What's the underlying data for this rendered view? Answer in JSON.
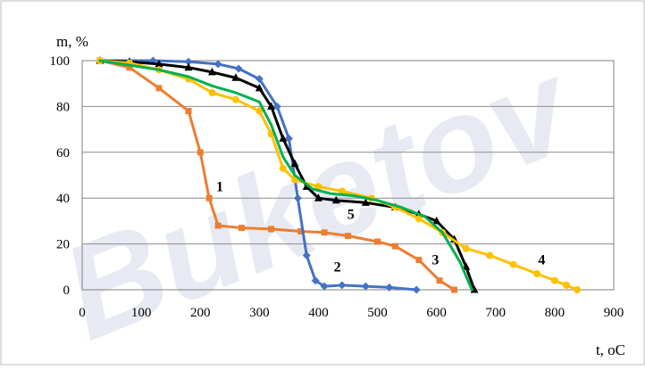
{
  "chart_data": {
    "type": "line",
    "title": "",
    "xlabel": "t, oC",
    "ylabel": "m, %",
    "xlim": [
      0,
      900
    ],
    "ylim": [
      0,
      100
    ],
    "x_ticks": [
      "0",
      "100",
      "200",
      "300",
      "400",
      "500",
      "600",
      "700",
      "800",
      "900"
    ],
    "y_ticks": [
      "0",
      "20",
      "40",
      "60",
      "80",
      "100"
    ],
    "grid": "horizontal",
    "legend": "none",
    "watermark": "Buketov",
    "series": [
      {
        "name": "1",
        "color": "#ED7D31",
        "marker": "square",
        "points": [
          [
            30,
            100
          ],
          [
            80,
            97
          ],
          [
            130,
            88
          ],
          [
            180,
            78
          ],
          [
            200,
            60
          ],
          [
            215,
            40
          ],
          [
            230,
            28
          ],
          [
            270,
            27
          ],
          [
            320,
            26.5
          ],
          [
            370,
            25.5
          ],
          [
            410,
            25
          ],
          [
            450,
            23.5
          ],
          [
            500,
            21
          ],
          [
            530,
            19
          ],
          [
            570,
            13
          ],
          [
            605,
            4
          ],
          [
            630,
            0
          ]
        ]
      },
      {
        "name": "2",
        "color": "#4472C4",
        "marker": "diamond",
        "points": [
          [
            30,
            100
          ],
          [
            120,
            100
          ],
          [
            180,
            99.5
          ],
          [
            230,
            98.5
          ],
          [
            265,
            96.5
          ],
          [
            300,
            92
          ],
          [
            330,
            80
          ],
          [
            350,
            66
          ],
          [
            365,
            40
          ],
          [
            380,
            15
          ],
          [
            395,
            4
          ],
          [
            410,
            1.5
          ],
          [
            440,
            2
          ],
          [
            480,
            1.5
          ],
          [
            520,
            1
          ],
          [
            566,
            0
          ]
        ]
      },
      {
        "name": "3",
        "color": "#000000",
        "marker": "triangle",
        "points": [
          [
            30,
            100
          ],
          [
            80,
            99.5
          ],
          [
            130,
            98.5
          ],
          [
            180,
            97
          ],
          [
            220,
            95
          ],
          [
            260,
            92.5
          ],
          [
            300,
            88
          ],
          [
            320,
            80
          ],
          [
            340,
            66
          ],
          [
            360,
            55
          ],
          [
            380,
            45
          ],
          [
            400,
            40
          ],
          [
            430,
            39
          ],
          [
            480,
            38
          ],
          [
            530,
            36
          ],
          [
            570,
            33
          ],
          [
            600,
            30
          ],
          [
            630,
            22
          ],
          [
            650,
            10
          ],
          [
            664,
            0
          ]
        ]
      },
      {
        "name": "4",
        "color": "#FFC000",
        "marker": "circle",
        "points": [
          [
            30,
            100
          ],
          [
            80,
            99
          ],
          [
            130,
            96
          ],
          [
            180,
            92
          ],
          [
            220,
            86
          ],
          [
            260,
            83
          ],
          [
            300,
            78
          ],
          [
            320,
            68
          ],
          [
            340,
            53
          ],
          [
            360,
            48
          ],
          [
            400,
            45
          ],
          [
            440,
            43
          ],
          [
            490,
            40
          ],
          [
            530,
            36
          ],
          [
            570,
            31
          ],
          [
            610,
            25
          ],
          [
            650,
            18
          ],
          [
            690,
            15
          ],
          [
            730,
            11
          ],
          [
            770,
            7
          ],
          [
            800,
            4
          ],
          [
            820,
            2
          ],
          [
            838,
            0
          ]
        ]
      },
      {
        "name": "5",
        "color": "#00B050",
        "marker": "none",
        "points": [
          [
            30,
            100
          ],
          [
            80,
            98
          ],
          [
            130,
            96
          ],
          [
            180,
            93
          ],
          [
            220,
            89
          ],
          [
            260,
            86
          ],
          [
            300,
            82
          ],
          [
            320,
            72
          ],
          [
            340,
            58
          ],
          [
            360,
            50
          ],
          [
            390,
            44
          ],
          [
            420,
            42
          ],
          [
            460,
            41
          ],
          [
            500,
            39
          ],
          [
            540,
            36
          ],
          [
            580,
            32
          ],
          [
            610,
            25
          ],
          [
            640,
            12
          ],
          [
            660,
            0
          ]
        ]
      }
    ],
    "curve_labels": [
      {
        "text": "1",
        "x": 233,
        "y": 43
      },
      {
        "text": "2",
        "x": 432,
        "y": 8
      },
      {
        "text": "3",
        "x": 598,
        "y": 11
      },
      {
        "text": "4",
        "x": 778,
        "y": 11
      },
      {
        "text": "5",
        "x": 455,
        "y": 31
      }
    ]
  }
}
